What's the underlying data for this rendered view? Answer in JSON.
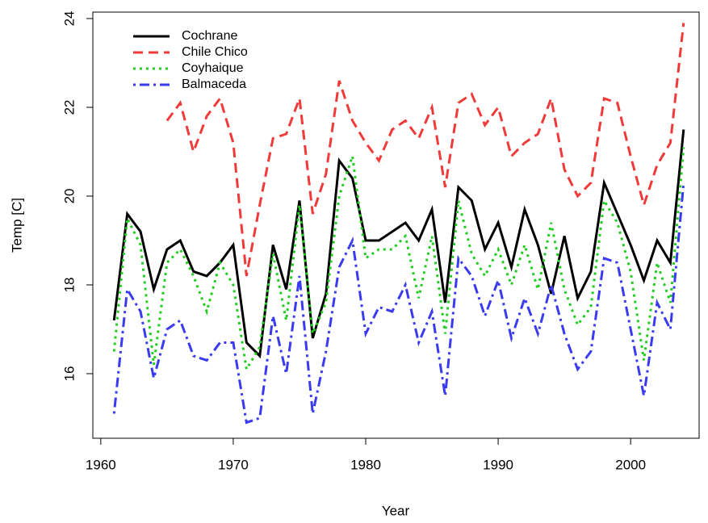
{
  "chart_data": {
    "type": "line",
    "x_label": "Year",
    "y_label": "Temp [C]",
    "x": [
      1961,
      1962,
      1963,
      1964,
      1965,
      1966,
      1967,
      1968,
      1969,
      1970,
      1971,
      1972,
      1973,
      1974,
      1975,
      1976,
      1977,
      1978,
      1979,
      1980,
      1981,
      1982,
      1983,
      1984,
      1985,
      1986,
      1987,
      1988,
      1989,
      1990,
      1991,
      1992,
      1993,
      1994,
      1995,
      1996,
      1997,
      1998,
      1999,
      2000,
      2001,
      2002,
      2003,
      2004
    ],
    "series": [
      {
        "name": "Cochrane",
        "color": "#000000",
        "dash": "solid",
        "values": [
          17.2,
          19.6,
          19.2,
          17.9,
          18.8,
          19.0,
          18.3,
          18.2,
          18.5,
          18.9,
          16.7,
          16.4,
          18.9,
          17.9,
          19.9,
          16.8,
          17.8,
          20.8,
          20.4,
          19.0,
          19.0,
          19.2,
          19.4,
          19.0,
          19.7,
          17.6,
          20.2,
          19.9,
          18.8,
          19.4,
          18.4,
          19.7,
          18.9,
          17.8,
          19.1,
          17.7,
          18.3,
          20.3,
          19.6,
          18.9,
          18.1,
          19.0,
          18.5,
          21.5
        ]
      },
      {
        "name": "Chile Chico",
        "color": "#f03a3a",
        "dash": "dashed",
        "values": [
          null,
          null,
          null,
          null,
          21.7,
          22.1,
          21.0,
          21.8,
          22.2,
          21.2,
          18.2,
          19.8,
          21.3,
          21.4,
          22.2,
          19.6,
          20.5,
          22.6,
          21.7,
          21.2,
          20.8,
          21.5,
          21.7,
          21.3,
          22.0,
          20.2,
          22.1,
          22.3,
          21.6,
          22.0,
          20.9,
          21.2,
          21.4,
          22.2,
          20.6,
          20.0,
          20.3,
          22.2,
          22.1,
          20.9,
          19.8,
          20.7,
          21.2,
          23.9
        ]
      },
      {
        "name": "Coyhaique",
        "color": "#22cc22",
        "dash": "dotted",
        "values": [
          16.5,
          19.5,
          18.9,
          16.2,
          18.5,
          18.8,
          18.2,
          17.4,
          18.5,
          18.0,
          16.1,
          16.6,
          18.7,
          17.2,
          19.8,
          16.9,
          17.6,
          20.0,
          20.9,
          18.6,
          18.8,
          18.8,
          19.1,
          17.7,
          19.1,
          16.9,
          19.9,
          18.7,
          18.2,
          18.8,
          18.0,
          18.9,
          17.9,
          19.4,
          17.9,
          17.1,
          17.5,
          19.9,
          19.4,
          18.3,
          16.3,
          18.5,
          17.6,
          21.1
        ]
      },
      {
        "name": "Balmaceda",
        "color": "#3a3af0",
        "dash": "dotdash",
        "values": [
          15.1,
          17.9,
          17.4,
          15.9,
          17.0,
          17.2,
          16.4,
          16.3,
          16.7,
          16.7,
          14.9,
          15.0,
          17.3,
          16.0,
          18.2,
          15.1,
          16.5,
          18.4,
          19.0,
          16.9,
          17.5,
          17.4,
          18.0,
          16.7,
          17.4,
          15.5,
          18.6,
          18.2,
          17.3,
          18.1,
          16.8,
          17.7,
          16.9,
          18.0,
          16.9,
          16.1,
          16.5,
          18.6,
          18.5,
          17.0,
          15.5,
          17.6,
          17.0,
          20.3
        ]
      }
    ],
    "xlim": [
      1959.4,
      2005.17
    ],
    "ylim": [
      14.545,
      24.145
    ],
    "xticks": [
      1960,
      1970,
      1980,
      1990,
      2000
    ],
    "yticks": [
      16,
      18,
      20,
      22,
      24
    ],
    "grid": false,
    "legend": "top-left"
  }
}
